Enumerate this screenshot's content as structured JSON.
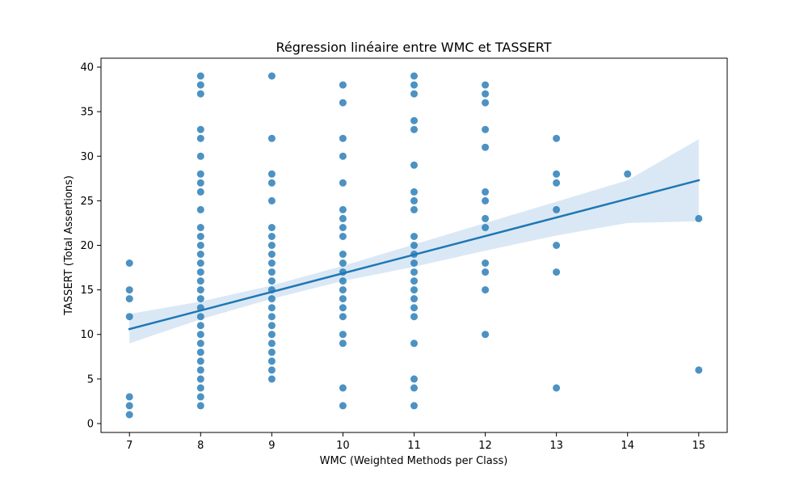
{
  "chart_data": {
    "type": "scatter",
    "title": "Régression linéaire entre WMC et TASSERT",
    "xlabel": "WMC (Weighted Methods per Class)",
    "ylabel": "TASSERT (Total Assertions)",
    "xlim": [
      6.6,
      15.4
    ],
    "ylim": [
      -1,
      41
    ],
    "xticks": [
      7,
      8,
      9,
      10,
      11,
      12,
      13,
      14,
      15
    ],
    "yticks": [
      0,
      5,
      10,
      15,
      20,
      25,
      30,
      35,
      40
    ],
    "grid": false,
    "legend": "none",
    "colors": {
      "points": "#1f77b4",
      "line": "#1f77b4",
      "band": "#c6dbef"
    },
    "points": [
      [
        7,
        18
      ],
      [
        7,
        15
      ],
      [
        7,
        14
      ],
      [
        7,
        12
      ],
      [
        7,
        3
      ],
      [
        7,
        2
      ],
      [
        7,
        1
      ],
      [
        8,
        39
      ],
      [
        8,
        38
      ],
      [
        8,
        37
      ],
      [
        8,
        33
      ],
      [
        8,
        32
      ],
      [
        8,
        30
      ],
      [
        8,
        28
      ],
      [
        8,
        27
      ],
      [
        8,
        26
      ],
      [
        8,
        24
      ],
      [
        8,
        22
      ],
      [
        8,
        21
      ],
      [
        8,
        20
      ],
      [
        8,
        19
      ],
      [
        8,
        18
      ],
      [
        8,
        17
      ],
      [
        8,
        16
      ],
      [
        8,
        15
      ],
      [
        8,
        14
      ],
      [
        8,
        13
      ],
      [
        8,
        12
      ],
      [
        8,
        11
      ],
      [
        8,
        10
      ],
      [
        8,
        9
      ],
      [
        8,
        8
      ],
      [
        8,
        7
      ],
      [
        8,
        6
      ],
      [
        8,
        5
      ],
      [
        8,
        4
      ],
      [
        8,
        3
      ],
      [
        8,
        2
      ],
      [
        9,
        39
      ],
      [
        9,
        32
      ],
      [
        9,
        28
      ],
      [
        9,
        27
      ],
      [
        9,
        25
      ],
      [
        9,
        22
      ],
      [
        9,
        21
      ],
      [
        9,
        20
      ],
      [
        9,
        19
      ],
      [
        9,
        18
      ],
      [
        9,
        17
      ],
      [
        9,
        16
      ],
      [
        9,
        15
      ],
      [
        9,
        14
      ],
      [
        9,
        13
      ],
      [
        9,
        12
      ],
      [
        9,
        11
      ],
      [
        9,
        10
      ],
      [
        9,
        9
      ],
      [
        9,
        8
      ],
      [
        9,
        7
      ],
      [
        9,
        6
      ],
      [
        9,
        5
      ],
      [
        10,
        38
      ],
      [
        10,
        36
      ],
      [
        10,
        32
      ],
      [
        10,
        30
      ],
      [
        10,
        27
      ],
      [
        10,
        24
      ],
      [
        10,
        23
      ],
      [
        10,
        22
      ],
      [
        10,
        21
      ],
      [
        10,
        19
      ],
      [
        10,
        18
      ],
      [
        10,
        17
      ],
      [
        10,
        16
      ],
      [
        10,
        15
      ],
      [
        10,
        14
      ],
      [
        10,
        13
      ],
      [
        10,
        12
      ],
      [
        10,
        10
      ],
      [
        10,
        9
      ],
      [
        10,
        4
      ],
      [
        10,
        2
      ],
      [
        11,
        39
      ],
      [
        11,
        38
      ],
      [
        11,
        37
      ],
      [
        11,
        34
      ],
      [
        11,
        33
      ],
      [
        11,
        29
      ],
      [
        11,
        26
      ],
      [
        11,
        25
      ],
      [
        11,
        24
      ],
      [
        11,
        21
      ],
      [
        11,
        20
      ],
      [
        11,
        19
      ],
      [
        11,
        18
      ],
      [
        11,
        17
      ],
      [
        11,
        16
      ],
      [
        11,
        15
      ],
      [
        11,
        14
      ],
      [
        11,
        13
      ],
      [
        11,
        12
      ],
      [
        11,
        9
      ],
      [
        11,
        5
      ],
      [
        11,
        4
      ],
      [
        11,
        2
      ],
      [
        12,
        38
      ],
      [
        12,
        37
      ],
      [
        12,
        36
      ],
      [
        12,
        33
      ],
      [
        12,
        31
      ],
      [
        12,
        26
      ],
      [
        12,
        25
      ],
      [
        12,
        23
      ],
      [
        12,
        22
      ],
      [
        12,
        18
      ],
      [
        12,
        17
      ],
      [
        12,
        15
      ],
      [
        12,
        10
      ],
      [
        13,
        32
      ],
      [
        13,
        28
      ],
      [
        13,
        27
      ],
      [
        13,
        24
      ],
      [
        13,
        20
      ],
      [
        13,
        17
      ],
      [
        13,
        4
      ],
      [
        14,
        28
      ],
      [
        15,
        23
      ],
      [
        15,
        6
      ]
    ],
    "regression": {
      "x": [
        7,
        15
      ],
      "y": [
        10.6,
        27.3
      ]
    },
    "confidence_band": {
      "x": [
        7,
        8,
        9,
        10,
        11,
        12,
        13,
        14,
        15
      ],
      "upper": [
        12.3,
        13.7,
        15.5,
        17.7,
        20.1,
        22.5,
        24.9,
        27.3,
        31.9
      ],
      "lower": [
        9.0,
        11.7,
        14.0,
        16.0,
        17.6,
        19.4,
        21.1,
        22.5,
        22.7
      ]
    }
  }
}
